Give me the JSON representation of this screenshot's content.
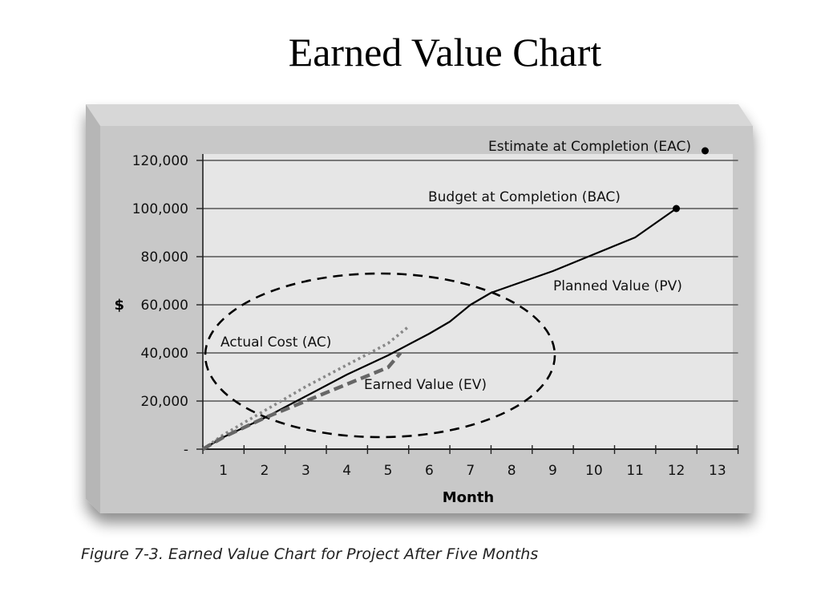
{
  "slide": {
    "title": "Earned Value Chart",
    "caption": "Figure 7-3. Earned Value Chart for Project After Five Months"
  },
  "chart_data": {
    "type": "line",
    "xlabel": "Month",
    "ylabel": "$",
    "xlim": [
      0.5,
      13.5
    ],
    "ylim": [
      0,
      120000
    ],
    "x_ticks": [
      1,
      2,
      3,
      4,
      5,
      6,
      7,
      8,
      9,
      10,
      11,
      12,
      13
    ],
    "y_ticks": [
      {
        "value": 0,
        "label": "-"
      },
      {
        "value": 20000,
        "label": "20,000"
      },
      {
        "value": 40000,
        "label": "40,000"
      },
      {
        "value": 60000,
        "label": "60,000"
      },
      {
        "value": 80000,
        "label": "80,000"
      },
      {
        "value": 100000,
        "label": "100,000"
      },
      {
        "value": 120000,
        "label": "120,000"
      }
    ],
    "grid": true,
    "series": [
      {
        "name": "Planned Value (PV)",
        "style": "solid",
        "color": "#000000",
        "points": [
          [
            0.5,
            0
          ],
          [
            1,
            5000
          ],
          [
            2,
            13000
          ],
          [
            3,
            22000
          ],
          [
            4,
            31000
          ],
          [
            5,
            39000
          ],
          [
            6,
            48000
          ],
          [
            6.5,
            53000
          ],
          [
            7,
            60000
          ],
          [
            7.5,
            65000
          ],
          [
            8,
            68000
          ],
          [
            9,
            74000
          ],
          [
            10,
            81000
          ],
          [
            11,
            88000
          ],
          [
            12,
            100000
          ]
        ]
      },
      {
        "name": "Actual Cost (AC)",
        "style": "dotted",
        "color": "#888888",
        "points": [
          [
            0.5,
            0
          ],
          [
            1,
            6000
          ],
          [
            2,
            16000
          ],
          [
            3,
            26000
          ],
          [
            4,
            35000
          ],
          [
            5,
            44000
          ],
          [
            5.5,
            51000
          ]
        ]
      },
      {
        "name": "Earned Value (EV)",
        "style": "dashed",
        "color": "#666666",
        "points": [
          [
            0.5,
            0
          ],
          [
            1,
            5000
          ],
          [
            2,
            13000
          ],
          [
            3,
            20000
          ],
          [
            4,
            27000
          ],
          [
            5,
            34000
          ],
          [
            5.3,
            40000
          ]
        ]
      }
    ],
    "markers": [
      {
        "label": "Budget at Completion (BAC)",
        "x": 12,
        "y": 100000
      },
      {
        "label": "Estimate at Completion (EAC)",
        "x": 12.7,
        "y": 124000
      }
    ]
  }
}
